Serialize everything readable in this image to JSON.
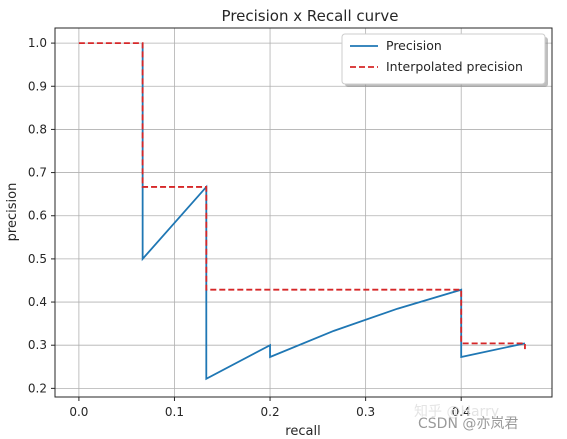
{
  "chart_data": {
    "type": "line",
    "title": "Precision x Recall curve",
    "xlabel": "recall",
    "ylabel": "precision",
    "xlim": [
      -0.025,
      0.495
    ],
    "ylim": [
      0.18,
      1.035
    ],
    "xticks": [
      0.0,
      0.1,
      0.2,
      0.3,
      0.4
    ],
    "xtick_labels": [
      "0.0",
      "0.1",
      "0.2",
      "0.3",
      "0.4"
    ],
    "yticks": [
      0.2,
      0.3,
      0.4,
      0.5,
      0.6,
      0.7,
      0.8,
      0.9,
      1.0
    ],
    "ytick_labels": [
      "0.2",
      "0.3",
      "0.4",
      "0.5",
      "0.6",
      "0.7",
      "0.8",
      "0.9",
      "1.0"
    ],
    "grid": true,
    "legend_position": "top-right",
    "series": [
      {
        "name": "Precision",
        "color": "#1f77b4",
        "style": "solid",
        "points": [
          [
            0.0667,
            1.0
          ],
          [
            0.0667,
            0.5
          ],
          [
            0.1333,
            0.6667
          ],
          [
            0.1333,
            0.2222
          ],
          [
            0.2,
            0.3
          ],
          [
            0.2,
            0.2727
          ],
          [
            0.2667,
            0.3333
          ],
          [
            0.3333,
            0.3846
          ],
          [
            0.4,
            0.4286
          ],
          [
            0.4,
            0.2727
          ],
          [
            0.4667,
            0.3043
          ]
        ]
      },
      {
        "name": "Interpolated precision",
        "color": "#d62728",
        "style": "dashed",
        "points": [
          [
            0.0,
            1.0
          ],
          [
            0.0667,
            1.0
          ],
          [
            0.0667,
            0.6667
          ],
          [
            0.1333,
            0.6667
          ],
          [
            0.1333,
            0.4286
          ],
          [
            0.4,
            0.4286
          ],
          [
            0.4,
            0.3043
          ],
          [
            0.4667,
            0.3043
          ],
          [
            0.4667,
            0.2909
          ]
        ]
      }
    ]
  },
  "watermark": {
    "line1": "知乎 @Harry",
    "line2": "CSDN @亦岚君"
  }
}
